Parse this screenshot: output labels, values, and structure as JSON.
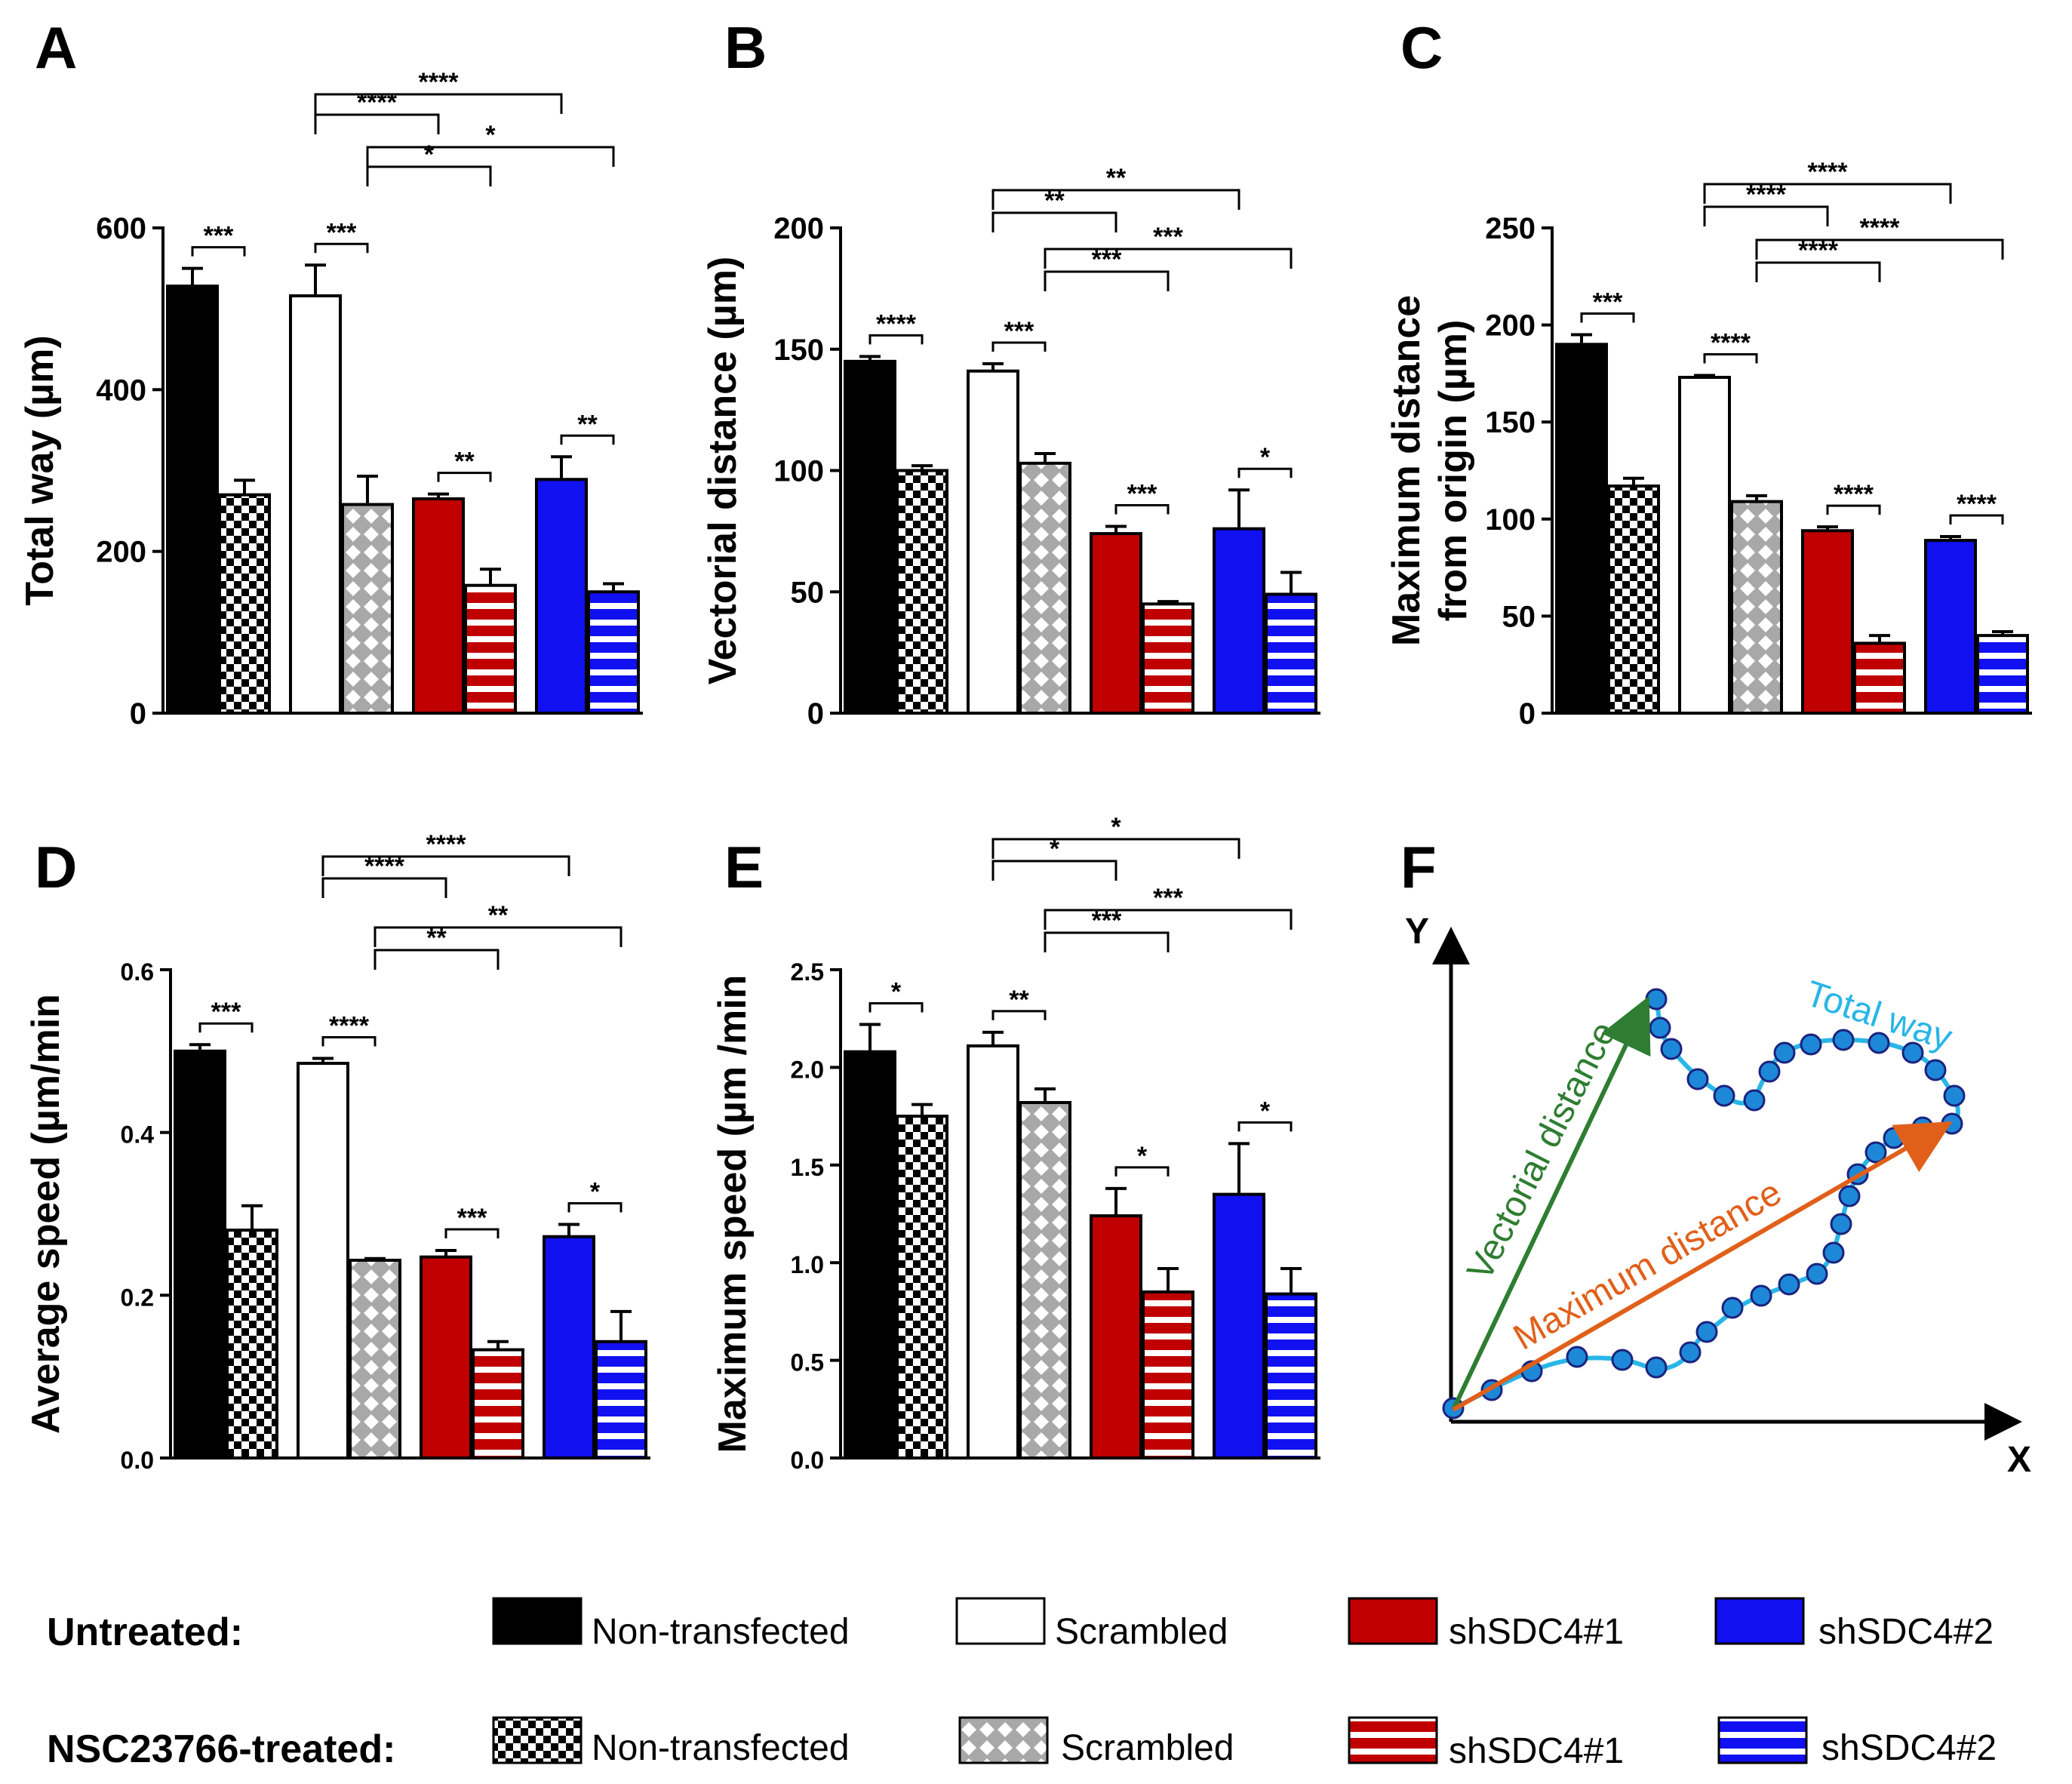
{
  "chart_data": [
    {
      "panel": "A",
      "type": "bar",
      "ylabel": "Total way (µm)",
      "ylim": [
        0,
        600
      ],
      "yticks": [
        0,
        200,
        400,
        600
      ],
      "tick_labels": [
        "0",
        "200",
        "400",
        "600"
      ],
      "values": [
        528,
        270,
        516,
        258,
        265,
        158,
        289,
        150
      ],
      "errors": [
        22,
        18,
        38,
        35,
        6,
        20,
        28,
        10
      ],
      "pair_stars": [
        "***",
        "***",
        "**",
        "**"
      ],
      "comparisons": [
        {
          "from": 2,
          "to": 4,
          "label": "****"
        },
        {
          "from": 2,
          "to": 6,
          "label": "****"
        },
        {
          "from": 3,
          "to": 5,
          "label": "*"
        },
        {
          "from": 3,
          "to": 7,
          "label": "*"
        }
      ]
    },
    {
      "panel": "B",
      "type": "bar",
      "ylabel": "Vectorial distance (µm)",
      "ylim": [
        0,
        200
      ],
      "yticks": [
        0,
        50,
        100,
        150,
        200
      ],
      "tick_labels": [
        "0",
        "50",
        "100",
        "150",
        "200"
      ],
      "values": [
        145,
        100,
        141,
        103,
        74,
        45,
        76,
        49
      ],
      "errors": [
        2,
        2,
        3,
        4,
        3,
        1,
        16,
        9
      ],
      "pair_stars": [
        "****",
        "***",
        "***",
        "*"
      ],
      "comparisons": [
        {
          "from": 2,
          "to": 4,
          "label": "**"
        },
        {
          "from": 2,
          "to": 6,
          "label": "**"
        },
        {
          "from": 3,
          "to": 5,
          "label": "***"
        },
        {
          "from": 3,
          "to": 7,
          "label": "***"
        }
      ]
    },
    {
      "panel": "C",
      "type": "bar",
      "ylabel": "Maximum distance\nfrom origin (µm)",
      "ylim": [
        0,
        250
      ],
      "yticks": [
        0,
        50,
        100,
        150,
        200,
        250
      ],
      "tick_labels": [
        "0",
        "50",
        "100",
        "150",
        "200",
        "250"
      ],
      "values": [
        190,
        117,
        173,
        109,
        94,
        36,
        89,
        40
      ],
      "errors": [
        5,
        4,
        1,
        3,
        2,
        4,
        2,
        2
      ],
      "pair_stars": [
        "***",
        "****",
        "****",
        "****"
      ],
      "comparisons": [
        {
          "from": 2,
          "to": 4,
          "label": "****"
        },
        {
          "from": 2,
          "to": 6,
          "label": "****"
        },
        {
          "from": 3,
          "to": 5,
          "label": "****"
        },
        {
          "from": 3,
          "to": 7,
          "label": "****"
        }
      ]
    },
    {
      "panel": "D",
      "type": "bar",
      "ylabel": "Average speed (µm/min",
      "ylim": [
        0,
        0.6
      ],
      "yticks": [
        0,
        0.2,
        0.4,
        0.6
      ],
      "tick_labels": [
        "0.0",
        "0.2",
        "0.4",
        "0.6"
      ],
      "values": [
        0.5,
        0.28,
        0.485,
        0.243,
        0.247,
        0.133,
        0.272,
        0.143
      ],
      "errors": [
        0.008,
        0.03,
        0.006,
        0.002,
        0.008,
        0.01,
        0.015,
        0.037
      ],
      "pair_stars": [
        "***",
        "****",
        "***",
        "*"
      ],
      "comparisons": [
        {
          "from": 2,
          "to": 4,
          "label": "****"
        },
        {
          "from": 2,
          "to": 6,
          "label": "****"
        },
        {
          "from": 3,
          "to": 5,
          "label": "**"
        },
        {
          "from": 3,
          "to": 7,
          "label": "**"
        }
      ]
    },
    {
      "panel": "E",
      "type": "bar",
      "ylabel": "Maximum speed (µm /min",
      "ylim": [
        0,
        2.5
      ],
      "yticks": [
        0,
        0.5,
        1.0,
        1.5,
        2.0,
        2.5
      ],
      "tick_labels": [
        "0.0",
        "0.5",
        "1.0",
        "1.5",
        "2.0",
        "2.5"
      ],
      "values": [
        2.08,
        1.75,
        2.11,
        1.82,
        1.24,
        0.85,
        1.35,
        0.84
      ],
      "errors": [
        0.14,
        0.06,
        0.07,
        0.07,
        0.14,
        0.12,
        0.26,
        0.13
      ],
      "pair_stars": [
        "*",
        "**",
        "*",
        "*"
      ],
      "comparisons": [
        {
          "from": 2,
          "to": 4,
          "label": "*"
        },
        {
          "from": 2,
          "to": 6,
          "label": "*"
        },
        {
          "from": 3,
          "to": 5,
          "label": "***"
        },
        {
          "from": 3,
          "to": 7,
          "label": "***"
        }
      ]
    }
  ],
  "panel_f": {
    "panel": "F",
    "y_axis": "Y",
    "x_axis": "X",
    "vectorial_label": "Vectorial distance",
    "maximum_label": "Maximum distance",
    "total_label": "Total way",
    "colors": {
      "vectorial": "#2e7d32",
      "maximum": "#e0601a",
      "total": "#29b6e6",
      "dot": "#1e88d8"
    }
  },
  "legend": {
    "rows": [
      {
        "label": "Untreated:",
        "entries": [
          "Non-transfected",
          "Scrambled",
          "shSDC4#1",
          "shSDC4#2"
        ]
      },
      {
        "label": "NSC23766-treated:",
        "entries": [
          "Non-transfected",
          "Scrambled",
          "shSDC4#1",
          "shSDC4#2"
        ]
      }
    ]
  },
  "colors": {
    "black": "#000000",
    "white": "#ffffff",
    "red": "#c00000",
    "blue": "#1010f0",
    "grey": "#9a9a9a"
  }
}
